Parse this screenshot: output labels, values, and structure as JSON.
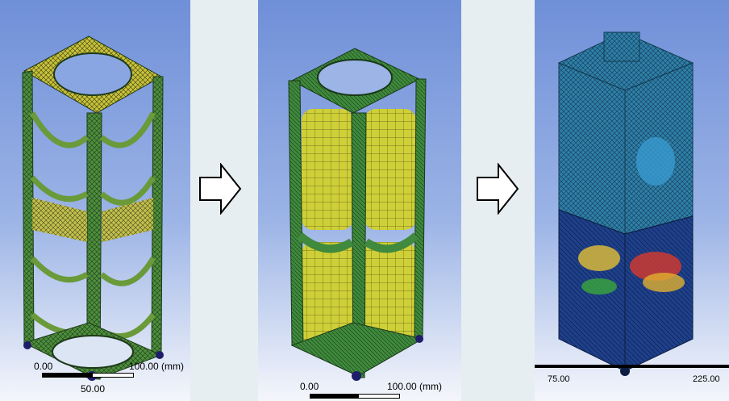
{
  "panel1": {
    "scale_left": "0.00",
    "scale_right": "100.00 (mm)",
    "scale_mid": "50.00"
  },
  "panel2": {
    "scale_left": "0.00",
    "scale_right": "100.00 (mm)"
  },
  "panel3": {
    "scale_left": "75.00",
    "scale_right": "225.00"
  },
  "arrows": [
    "right-arrow-icon",
    "right-arrow-icon"
  ],
  "colors": {
    "background_top": "#6f8fd8",
    "background_bottom": "#f4f6fb",
    "mesh_green": "#3e8a3a",
    "mesh_yellow": "#d8d83a",
    "mesh_blue": "#2a6f9a",
    "stress_red": "#d83a2a"
  }
}
